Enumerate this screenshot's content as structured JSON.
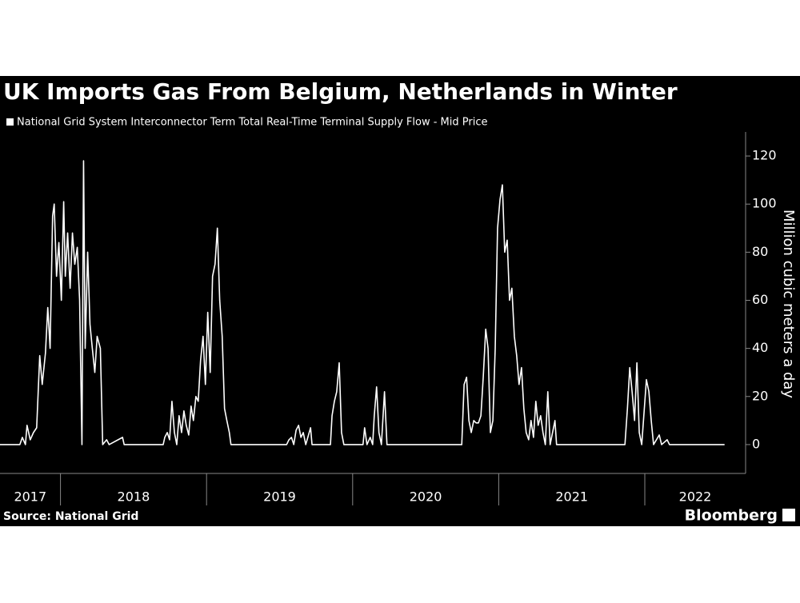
{
  "chart_data": {
    "type": "line",
    "title": "UK Imports Gas From Belgium, Netherlands in Winter",
    "y_label": "Million cubic meters a day",
    "source": "Source: National Grid",
    "brand": "Bloomberg",
    "x": [
      2017.586,
      2017.722,
      2017.739,
      2017.76,
      2017.771,
      2017.793,
      2017.815,
      2017.837,
      2017.858,
      2017.875,
      2017.897,
      2017.913,
      2017.929,
      2017.946,
      2017.957,
      2017.973,
      2017.989,
      2018.006,
      2018.022,
      2018.033,
      2018.049,
      2018.066,
      2018.082,
      2018.098,
      2018.115,
      2018.131,
      2018.147,
      2018.158,
      2018.169,
      2018.186,
      2018.202,
      2018.218,
      2018.235,
      2018.251,
      2018.273,
      2018.289,
      2018.316,
      2018.333,
      2018.425,
      2018.436,
      2018.703,
      2018.714,
      2018.731,
      2018.747,
      2018.763,
      2018.78,
      2018.796,
      2018.812,
      2018.829,
      2018.845,
      2018.861,
      2018.878,
      2018.894,
      2018.91,
      2018.927,
      2018.943,
      2018.959,
      2018.976,
      2018.992,
      2019.008,
      2019.025,
      2019.041,
      2019.058,
      2019.074,
      2019.09,
      2019.107,
      2019.123,
      2019.139,
      2019.156,
      2019.167,
      2019.548,
      2019.564,
      2019.581,
      2019.597,
      2019.613,
      2019.63,
      2019.646,
      2019.662,
      2019.679,
      2019.712,
      2019.722,
      2019.848,
      2019.859,
      2019.875,
      2019.891,
      2019.908,
      2019.924,
      2019.94,
      2020.071,
      2020.082,
      2020.098,
      2020.12,
      2020.137,
      2020.148,
      2020.164,
      2020.18,
      2020.197,
      2020.218,
      2020.235,
      2020.747,
      2020.763,
      2020.78,
      2020.796,
      2020.812,
      2020.829,
      2020.845,
      2020.861,
      2020.878,
      2020.894,
      2020.911,
      2020.927,
      2020.943,
      2020.96,
      2020.976,
      2020.992,
      2021.009,
      2021.025,
      2021.041,
      2021.058,
      2021.074,
      2021.09,
      2021.107,
      2021.123,
      2021.139,
      2021.156,
      2021.172,
      2021.188,
      2021.205,
      2021.221,
      2021.238,
      2021.254,
      2021.27,
      2021.287,
      2021.303,
      2021.319,
      2021.336,
      2021.352,
      2021.385,
      2021.396,
      2021.864,
      2021.881,
      2021.897,
      2021.913,
      2021.93,
      2021.946,
      2021.962,
      2021.979,
      2022.011,
      2022.028,
      2022.044,
      2022.06,
      2022.099,
      2022.115,
      2022.153,
      2022.169,
      2022.546
    ],
    "series": [
      {
        "name": "National Grid System Interconnector Term Total Real-Time Terminal Supply Flow - Mid Price",
        "color": "#ffffff",
        "values": [
          0,
          0,
          3,
          0,
          8,
          2,
          5,
          7,
          37,
          25,
          38,
          57,
          40,
          95,
          100,
          70,
          84,
          60,
          101,
          70,
          88,
          65,
          88,
          75,
          82,
          60,
          0,
          118,
          40,
          80,
          50,
          40,
          30,
          45,
          40,
          0,
          2,
          0,
          3,
          0,
          0,
          3,
          5,
          2,
          18,
          5,
          0,
          12,
          5,
          14,
          8,
          4,
          16,
          10,
          20,
          18,
          35,
          45,
          25,
          55,
          30,
          70,
          75,
          90,
          60,
          45,
          15,
          10,
          5,
          0,
          0,
          2,
          3,
          0,
          6,
          8,
          3,
          5,
          0,
          7,
          0,
          0,
          12,
          18,
          22,
          34,
          5,
          0,
          0,
          7,
          0,
          3,
          0,
          12,
          24,
          5,
          0,
          22,
          0,
          0,
          25,
          28,
          10,
          5,
          10,
          9,
          9,
          12,
          28,
          48,
          40,
          5,
          10,
          40,
          90,
          102,
          108,
          80,
          85,
          60,
          65,
          45,
          37,
          25,
          32,
          15,
          5,
          2,
          10,
          3,
          18,
          8,
          12,
          5,
          0,
          22,
          0,
          10,
          0,
          0,
          15,
          32,
          22,
          10,
          34,
          5,
          0,
          27,
          22,
          10,
          0,
          4,
          0,
          2,
          0,
          0
        ]
      }
    ],
    "xlim": [
      2017.586,
      2022.69
    ],
    "xticks": [
      2017,
      2018,
      2019,
      2020,
      2021,
      2022
    ],
    "ylim": [
      -12,
      130
    ],
    "yticks": [
      0,
      20,
      40,
      60,
      80,
      100,
      120
    ]
  }
}
